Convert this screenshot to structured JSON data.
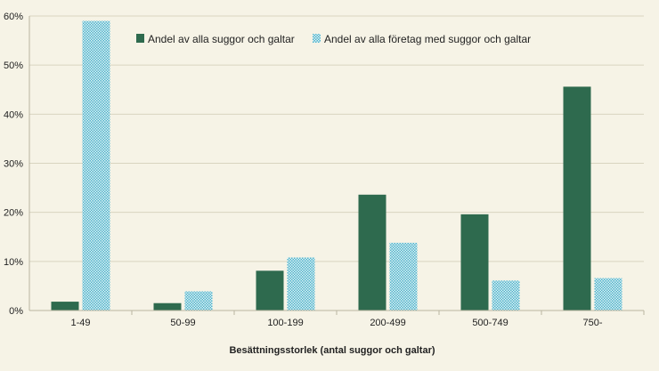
{
  "colors": {
    "background": "#f6f3e6",
    "gridline": "#d9d4c0",
    "axis": "#b9b4a0",
    "series_1": "#2e6a4e",
    "series_2": "#4fb3c9",
    "series_2_pattern": "#dff2f6"
  },
  "chart_data": {
    "type": "bar",
    "title": "",
    "xlabel": "Besättningsstorlek (antal suggor och galtar)",
    "ylabel": "",
    "ylim": [
      0,
      60
    ],
    "y_ticks": [
      "0%",
      "10%",
      "20%",
      "30%",
      "40%",
      "50%",
      "60%"
    ],
    "grid": true,
    "legend_position": "top",
    "categories": [
      "1-49",
      "50-99",
      "100-199",
      "200-499",
      "500-749",
      "750-"
    ],
    "series": [
      {
        "name": "Andel av alla suggor och galtar",
        "values": [
          1.8,
          1.5,
          8.1,
          23.6,
          19.6,
          45.6
        ]
      },
      {
        "name": "Andel av alla företag med suggor och galtar",
        "values": [
          59.0,
          3.9,
          10.8,
          13.8,
          6.1,
          6.6
        ]
      }
    ]
  }
}
